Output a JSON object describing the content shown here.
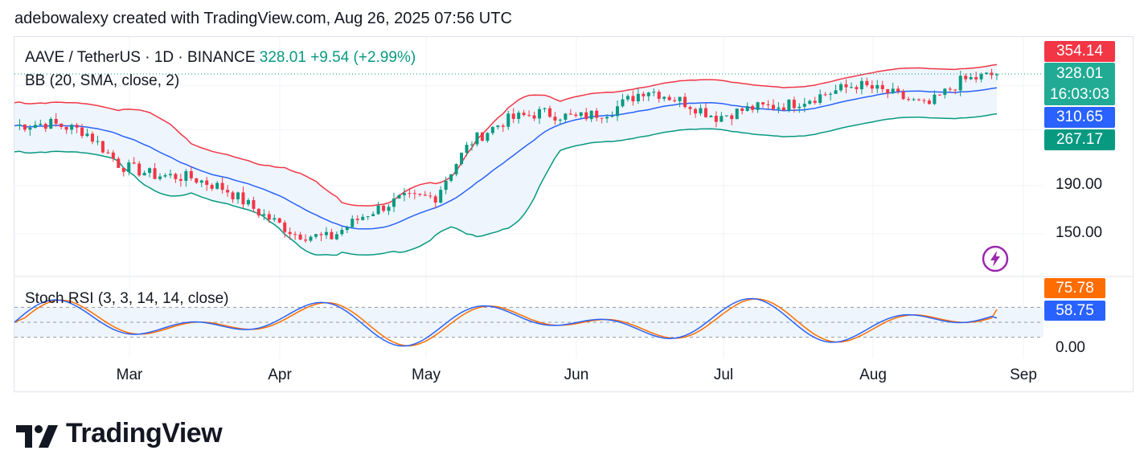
{
  "header": "adebowalexy created with TradingView.com, Aug 26, 2025 07:56 UTC",
  "legend": {
    "symbol": "AAVE / TetherUS · 1D · BINANCE",
    "last": "328.01",
    "change": "+9.54 (+2.99%)",
    "bb": "BB (20, SMA, close, 2)",
    "stoch": "Stoch RSI (3, 3, 14, 14, close)"
  },
  "price_labels": {
    "upper": "354.14",
    "last": "328.01",
    "countdown": "16:03:03",
    "middle": "310.65",
    "lower": "267.17"
  },
  "y_ticks": [
    "190.00",
    "150.00"
  ],
  "stoch_labels": {
    "k": "75.78",
    "d": "58.75",
    "zero": "0.00"
  },
  "months": [
    "Mar",
    "Apr",
    "May",
    "Jun",
    "Jul",
    "Aug",
    "Sep"
  ],
  "brand": "TradingView",
  "colors": {
    "up": "#089981",
    "down": "#f23645",
    "bb_basis": "#2962ff",
    "bb_upper": "#f23645",
    "bb_lower": "#089981",
    "stoch_k": "#2962ff",
    "stoch_d": "#ff6d00",
    "band_fill": "#eef5fd",
    "last_price_box": "#22ab94",
    "middle_box": "#2962ff",
    "lower_box": "#089981",
    "upper_box": "#f23645",
    "k_box": "#ff6d00",
    "d_box": "#2962ff"
  },
  "chart_data": [
    {
      "type": "candlestick",
      "title": "AAVE / TetherUS · 1D · BINANCE",
      "x_range": [
        "2025-02-15",
        "2025-08-26"
      ],
      "y_scale": "log",
      "y_ticks": [
        150,
        190
      ],
      "last_close": 328.01,
      "bollinger": {
        "upper": 354.14,
        "middle": 310.65,
        "lower": 267.17
      },
      "series": [
        {
          "name": "close",
          "x": [
            "2025-02-15",
            "2025-02-22",
            "2025-03-01",
            "2025-03-08",
            "2025-03-15",
            "2025-03-22",
            "2025-03-29",
            "2025-04-05",
            "2025-04-12",
            "2025-04-19",
            "2025-04-26",
            "2025-05-03",
            "2025-05-10",
            "2025-05-17",
            "2025-05-24",
            "2025-05-31",
            "2025-06-07",
            "2025-06-14",
            "2025-06-21",
            "2025-06-28",
            "2025-07-05",
            "2025-07-12",
            "2025-07-19",
            "2025-07-26",
            "2025-08-02",
            "2025-08-09",
            "2025-08-16",
            "2025-08-23",
            "2025-08-26"
          ],
          "values": [
            255,
            258,
            248,
            210,
            200,
            198,
            187,
            166,
            150,
            147,
            165,
            178,
            180,
            235,
            262,
            272,
            265,
            274,
            305,
            288,
            266,
            278,
            282,
            296,
            312,
            298,
            280,
            318,
            328
          ]
        }
      ]
    },
    {
      "type": "line",
      "title": "Stoch RSI (3, 3, 14, 14, close)",
      "y_range": [
        0,
        100
      ],
      "y_ticks": [
        0
      ],
      "series": [
        {
          "name": "K",
          "last": 75.78
        },
        {
          "name": "D",
          "last": 58.75
        }
      ]
    }
  ]
}
